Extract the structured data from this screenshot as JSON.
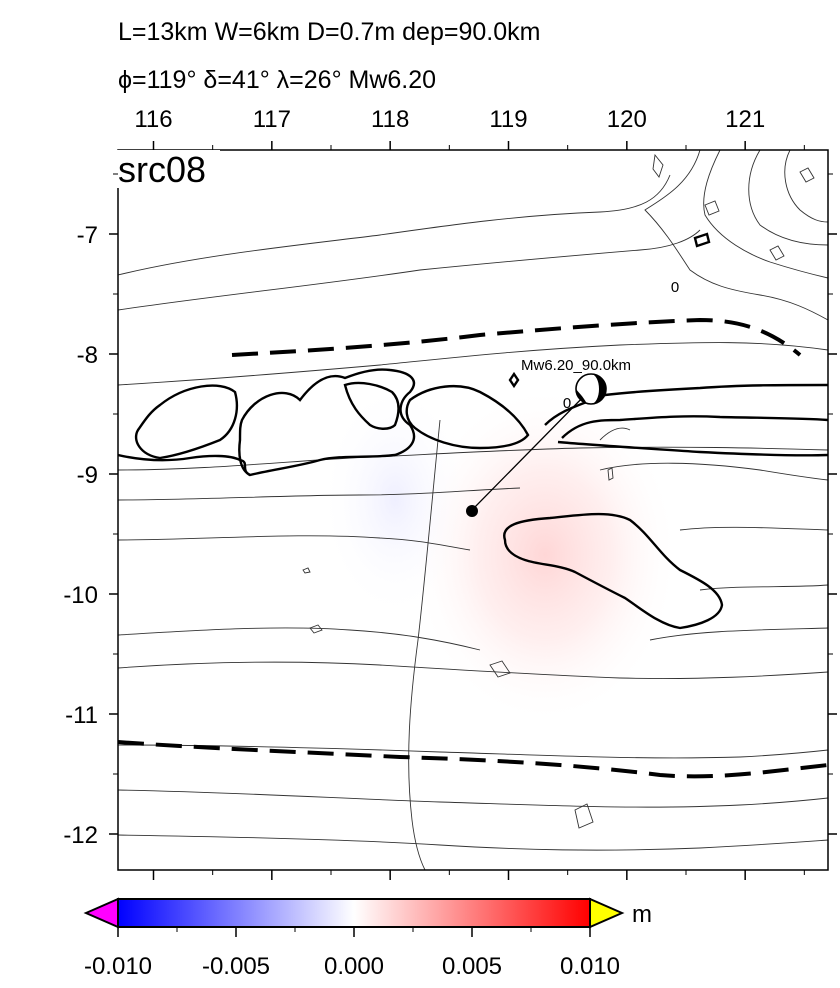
{
  "header": {
    "line1": "L=13km W=6km D=0.7m dep=90.0km",
    "line2": "ϕ=119° δ=41° λ=26° Mw6.20"
  },
  "map": {
    "panel_label": "src08",
    "lon_ticks": [
      116,
      117,
      118,
      119,
      120,
      121
    ],
    "lat_ticks": [
      -7,
      -8,
      -9,
      -10,
      -11,
      -12
    ],
    "lon_range": [
      115.7,
      121.7
    ],
    "lat_range": [
      -6.3,
      -12.3
    ],
    "epicenter_label": "Mw6.20_90.0km",
    "contour_labels": [
      "0",
      "0"
    ],
    "fault_point": [
      118.7,
      -9.3
    ],
    "mechanism_point": [
      119.7,
      -8.27
    ],
    "colors": {
      "positive": "#ff0000",
      "negative": "#0000ff",
      "overflow_low": "#ff00ff",
      "overflow_high": "#ffff00"
    }
  },
  "colorbar": {
    "unit": "m",
    "tick_labels": [
      "-0.010",
      "-0.005",
      "0.000",
      "0.005",
      "0.010"
    ],
    "range": [
      -0.01,
      0.01
    ]
  }
}
